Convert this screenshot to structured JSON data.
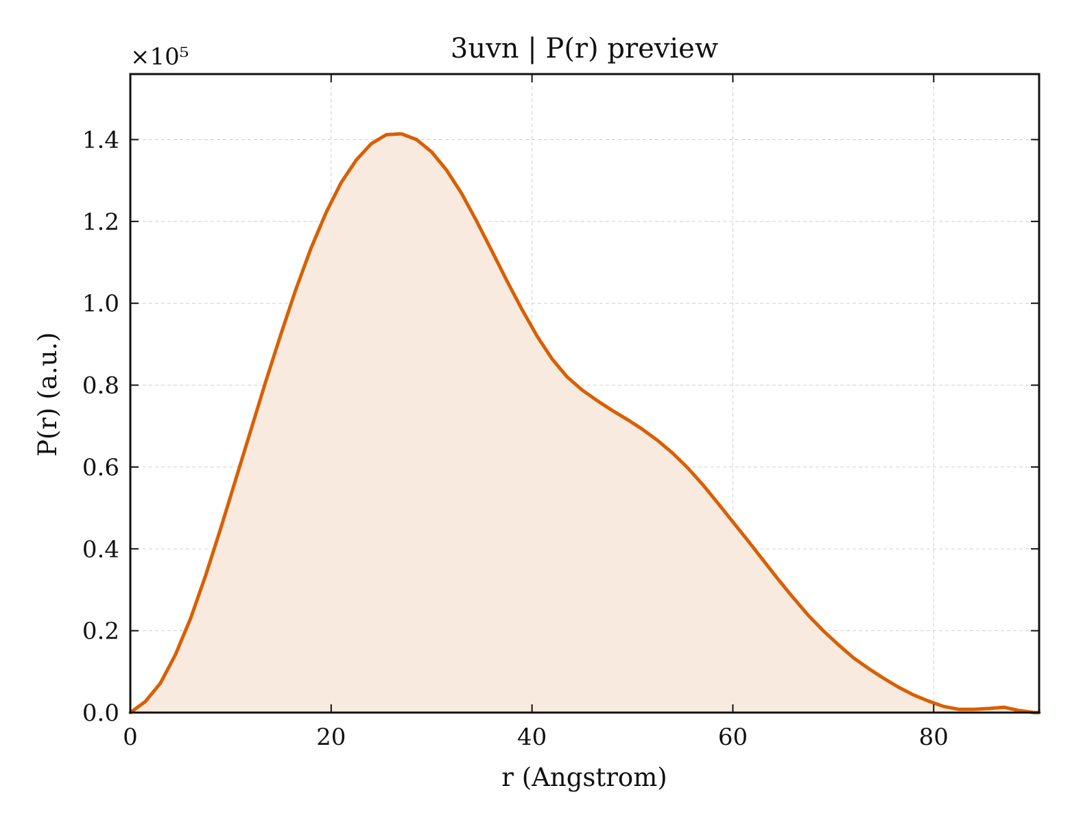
{
  "chart_data": {
    "type": "area",
    "title": "3uvn | P(r) preview",
    "xlabel": "r (Angstrom)",
    "ylabel": "P(r) (a.u.)",
    "y_offset_label": "×10⁵",
    "xlim": [
      0,
      90.5
    ],
    "ylim": [
      0,
      1.56
    ],
    "x_ticks": [
      0,
      20,
      40,
      60,
      80
    ],
    "x_tick_labels": [
      "0",
      "20",
      "40",
      "60",
      "80"
    ],
    "y_ticks": [
      0.0,
      0.2,
      0.4,
      0.6,
      0.8,
      1.0,
      1.2,
      1.4
    ],
    "y_tick_labels": [
      "0.0",
      "0.2",
      "0.4",
      "0.6",
      "0.8",
      "1.0",
      "1.2",
      "1.4"
    ],
    "grid": true,
    "colors": {
      "line": "#d95f02",
      "fill": "#f9eadf"
    },
    "series": [
      {
        "x": [
          0.0,
          1.5,
          3.0,
          4.5,
          6.0,
          7.5,
          9.0,
          10.5,
          12.0,
          13.5,
          15.0,
          16.5,
          18.0,
          19.5,
          21.0,
          22.5,
          24.0,
          25.5,
          27.0,
          28.5,
          30.0,
          31.5,
          33.0,
          34.5,
          36.0,
          37.5,
          39.0,
          40.5,
          42.0,
          43.5,
          45.0,
          46.5,
          48.0,
          49.5,
          51.0,
          52.5,
          54.0,
          55.5,
          57.0,
          58.5,
          60.0,
          61.5,
          63.0,
          64.5,
          66.0,
          67.5,
          69.0,
          70.5,
          72.0,
          73.5,
          75.0,
          76.5,
          78.0,
          79.5,
          81.0,
          82.5,
          84.0,
          85.5,
          87.0,
          88.5,
          90.0,
          90.5
        ],
        "values": [
          0.0,
          0.027,
          0.072,
          0.142,
          0.23,
          0.335,
          0.45,
          0.57,
          0.69,
          0.81,
          0.925,
          1.035,
          1.135,
          1.222,
          1.295,
          1.35,
          1.39,
          1.412,
          1.414,
          1.4,
          1.37,
          1.325,
          1.268,
          1.2,
          1.128,
          1.055,
          0.985,
          0.92,
          0.864,
          0.82,
          0.788,
          0.762,
          0.738,
          0.716,
          0.692,
          0.665,
          0.634,
          0.598,
          0.557,
          0.512,
          0.466,
          0.42,
          0.373,
          0.326,
          0.281,
          0.238,
          0.2,
          0.166,
          0.134,
          0.108,
          0.084,
          0.062,
          0.043,
          0.028,
          0.015,
          0.008,
          0.008,
          0.01,
          0.013,
          0.005,
          0.0,
          0.0
        ]
      }
    ]
  }
}
